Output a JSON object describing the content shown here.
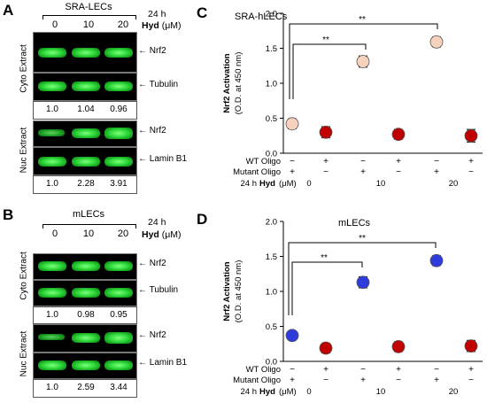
{
  "figure": {
    "panels": [
      {
        "letter": "A",
        "cell_label": "SRA-LECs",
        "time": "24 h",
        "treatment": "Hyd",
        "unit": "(μM)",
        "lanes": [
          "0",
          "10",
          "20"
        ],
        "sections": [
          {
            "name": "Cyto Extract",
            "blots": [
              "Nrf2",
              "Tubulin"
            ],
            "densitometry": [
              "1.0",
              "1.04",
              "0.96"
            ]
          },
          {
            "name": "Nuc Extract",
            "blots": [
              "Nrf2",
              "Lamin B1"
            ],
            "densitometry": [
              "1.0",
              "2.28",
              "3.91"
            ]
          }
        ]
      },
      {
        "letter": "B",
        "cell_label": "mLECs",
        "time": "24 h",
        "treatment": "Hyd",
        "unit": "(μM)",
        "lanes": [
          "0",
          "10",
          "20"
        ],
        "sections": [
          {
            "name": "Cyto Extract",
            "blots": [
              "Nrf2",
              "Tubulin"
            ],
            "densitometry": [
              "1.0",
              "0.98",
              "0.95"
            ]
          },
          {
            "name": "Nuc Extract",
            "blots": [
              "Nrf2",
              "Lamin B1"
            ],
            "densitometry": [
              "1.0",
              "2.59",
              "3.44"
            ]
          }
        ]
      }
    ],
    "row_labels": {
      "wt": "WT Oligo",
      "mutant": "Mutant  Oligo",
      "time": "24 h",
      "hyd": "Hyd",
      "unit": "(μM)"
    },
    "row_marks": {
      "wt": [
        "−",
        "+",
        "−",
        "+",
        "−",
        "+"
      ],
      "mutant": [
        "+",
        "−",
        "+",
        "−",
        "+",
        "−"
      ]
    },
    "dose_labels": [
      "0",
      "10",
      "20"
    ],
    "sig_marks": [
      "**",
      "**"
    ]
  },
  "chart_data": [
    {
      "letter": "C",
      "type": "scatter",
      "title": "SRA-hLECs",
      "ylabel": "Nrf2 Activation",
      "ylabel2": "(O.D. at 450 nm)",
      "ylim": [
        0,
        2
      ],
      "yticks": [
        "0.0",
        "0.5",
        "1.0",
        "1.5",
        "2.0"
      ],
      "values": [
        0.42,
        0.3,
        1.31,
        0.27,
        1.59,
        0.25
      ],
      "errors": [
        0.07,
        0.08,
        0.08,
        0.07,
        0.07,
        0.09
      ],
      "colors": [
        "#f6d2bc",
        "#c00000",
        "#f6d2bc",
        "#c00000",
        "#f6d2bc",
        "#c00000"
      ]
    },
    {
      "letter": "D",
      "type": "scatter",
      "title": "mLECs",
      "ylabel": "Nrf2 Activation",
      "ylabel2": "(O.D. at 450 nm)",
      "ylim": [
        0,
        2
      ],
      "yticks": [
        "0.0",
        "0.5",
        "1.0",
        "1.5",
        "2.0"
      ],
      "values": [
        0.37,
        0.19,
        1.13,
        0.21,
        1.44,
        0.22
      ],
      "errors": [
        0.05,
        0.07,
        0.08,
        0.07,
        0.07,
        0.08
      ],
      "colors": [
        "#2e3cdc",
        "#c00000",
        "#2e3cdc",
        "#c00000",
        "#2e3cdc",
        "#c00000"
      ]
    }
  ]
}
